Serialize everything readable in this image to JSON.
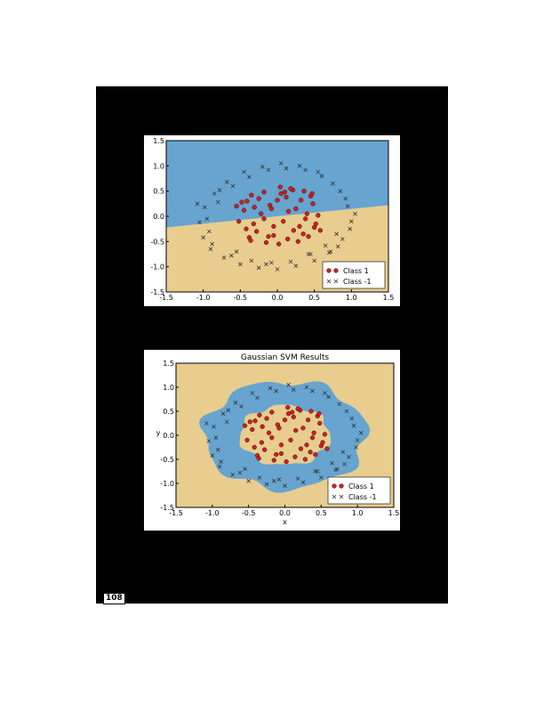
{
  "page": {
    "number": "108"
  },
  "colors": {
    "page_background": "#000000",
    "region_class1": "#e8cd8f",
    "region_class_neg1": "#67a4cf",
    "marker_class1": "#d41f1f",
    "marker_class_neg1": "#333333"
  },
  "chart_data": [
    {
      "type": "scatter",
      "title": "",
      "xlabel": "",
      "ylabel": "",
      "xlim": [
        -1.5,
        1.5
      ],
      "ylim": [
        -1.5,
        1.5
      ],
      "xticks": [
        "-1.5",
        "-1.0",
        "-0.5",
        "0.0",
        "0.5",
        "1.0",
        "1.5"
      ],
      "yticks": [
        "1.5",
        "1.0",
        "0.5",
        "0.0",
        "-0.5",
        "-1.0",
        "-1.5"
      ],
      "decision_boundary": {
        "kind": "linear",
        "points": [
          [
            -1.5,
            -0.22
          ],
          [
            1.5,
            0.22
          ]
        ],
        "above": "region_class_neg1",
        "below": "region_class1"
      },
      "series": [
        {
          "name": "Class 1",
          "marker": "o",
          "color": "#d41f1f",
          "x": [
            0.05,
            -0.41,
            0.21,
            -0.31,
            0.48,
            0.12,
            -0.05,
            0.35,
            -0.18,
            0.4,
            -0.52,
            0.28,
            -0.1,
            0.5,
            -0.38,
            0.15,
            0.02,
            -0.28,
            0.45,
            -0.45,
            0.32,
            -0.12,
            0.22,
            -0.35,
            0.55,
            0.08,
            -0.22,
            0.38,
            -0.48,
            0.18,
            0.0,
            -0.15,
            0.42,
            -0.32,
            0.25,
            -0.05,
            0.52,
            -0.42,
            0.1,
            -0.25,
            0.3,
            -0.08,
            0.47,
            -0.55,
            0.14,
            -0.36,
            0.36,
            -0.18,
            0.58,
            0.04
          ],
          "y": [
            0.45,
            0.3,
            0.52,
            0.18,
            0.25,
            0.38,
            -0.2,
            -0.35,
            0.48,
            0.05,
            -0.1,
            -0.5,
            0.22,
            -0.22,
            -0.42,
            0.1,
            -0.55,
            -0.3,
            0.4,
            0.12,
            0.32,
            -0.4,
            -0.28,
            0.42,
            0.02,
            -0.1,
            0.05,
            -0.05,
            0.28,
            0.55,
            0.32,
            -0.52,
            -0.4,
            -0.15,
            0.15,
            -0.38,
            -0.15,
            -0.25,
            0.48,
            0.35,
            -0.2,
            0.15,
            0.45,
            0.2,
            -0.45,
            -0.48,
            0.5,
            -0.05,
            -0.28,
            0.58
          ]
        },
        {
          "name": "Class -1",
          "marker": "x",
          "color": "#333333",
          "x": [
            1.0,
            0.92,
            0.75,
            0.55,
            0.3,
            0.05,
            -0.2,
            -0.45,
            -0.68,
            -0.85,
            -0.98,
            -1.05,
            -1.0,
            -0.9,
            -0.72,
            -0.5,
            -0.25,
            0.0,
            0.25,
            0.5,
            0.72,
            0.88,
            0.98,
            1.05,
            0.85,
            0.6,
            0.38,
            0.12,
            -0.12,
            -0.38,
            -0.6,
            -0.8,
            -0.95,
            -1.08,
            -0.88,
            -0.62,
            -0.35,
            -0.08,
            0.18,
            0.42,
            0.65,
            0.82,
            0.95,
            0.7,
            0.45,
            -0.55,
            -0.78,
            -0.92,
            0.8,
            -0.15
          ],
          "y": [
            -0.1,
            0.35,
            0.65,
            0.88,
            1.0,
            1.05,
            0.98,
            0.88,
            0.68,
            0.45,
            0.18,
            -0.12,
            -0.42,
            -0.65,
            -0.82,
            -0.95,
            -1.02,
            -1.05,
            -0.98,
            -0.88,
            -0.7,
            -0.45,
            -0.25,
            0.05,
            0.5,
            0.8,
            0.92,
            0.95,
            0.92,
            0.78,
            0.6,
            0.28,
            -0.05,
            0.25,
            -0.55,
            -0.78,
            -0.88,
            -0.92,
            -0.9,
            -0.75,
            -0.58,
            -0.6,
            0.2,
            -0.72,
            -0.75,
            -0.7,
            0.52,
            -0.3,
            -0.35,
            -0.95
          ]
        }
      ],
      "legend": {
        "position": "lower-right",
        "entries": [
          "Class 1",
          "Class -1"
        ]
      }
    },
    {
      "type": "scatter",
      "title": "Gaussian SVM Results",
      "xlabel": "x",
      "ylabel": "y",
      "xlim": [
        -1.5,
        1.5
      ],
      "ylim": [
        -1.5,
        1.5
      ],
      "xticks": [
        "-1.5",
        "-1.0",
        "-0.5",
        "0.0",
        "0.5",
        "1.0",
        "1.5"
      ],
      "yticks": [
        "1.5",
        "1.0",
        "0.5",
        "0.0",
        "-0.5",
        "-1.0",
        "-1.5"
      ],
      "decision_boundary": {
        "kind": "ring",
        "center": [
          0.0,
          0.0
        ],
        "inner_radius": 0.62,
        "outer_radius": 1.12,
        "ring": "region_class_neg1",
        "outside": "region_class1"
      },
      "series": [
        {
          "name": "Class 1",
          "marker": "o",
          "color": "#d41f1f",
          "x": [
            0.05,
            -0.41,
            0.21,
            -0.31,
            0.48,
            0.12,
            -0.05,
            0.35,
            -0.18,
            0.4,
            -0.52,
            0.28,
            -0.1,
            0.5,
            -0.38,
            0.15,
            0.02,
            -0.28,
            0.45,
            -0.45,
            0.32,
            -0.12,
            0.22,
            -0.35,
            0.55,
            0.08,
            -0.22,
            0.38,
            -0.48,
            0.18,
            0.0,
            -0.15,
            0.42,
            -0.32,
            0.25,
            -0.05,
            0.52,
            -0.42,
            0.1,
            -0.25,
            0.3,
            -0.08,
            0.47,
            -0.55,
            0.14,
            -0.36,
            0.36,
            -0.18,
            0.58,
            0.04
          ],
          "y": [
            0.45,
            0.3,
            0.52,
            0.18,
            0.25,
            0.38,
            -0.2,
            -0.35,
            0.48,
            0.05,
            -0.1,
            -0.5,
            0.22,
            -0.22,
            -0.42,
            0.1,
            -0.55,
            -0.3,
            0.4,
            0.12,
            0.32,
            -0.4,
            -0.28,
            0.42,
            0.02,
            -0.1,
            0.05,
            -0.05,
            0.28,
            0.55,
            0.32,
            -0.52,
            -0.4,
            -0.15,
            0.15,
            -0.38,
            -0.15,
            -0.25,
            0.48,
            0.35,
            -0.2,
            0.15,
            0.45,
            0.2,
            -0.45,
            -0.48,
            0.5,
            -0.05,
            -0.28,
            0.58
          ]
        },
        {
          "name": "Class -1",
          "marker": "x",
          "color": "#333333",
          "x": [
            1.0,
            0.92,
            0.75,
            0.55,
            0.3,
            0.05,
            -0.2,
            -0.45,
            -0.68,
            -0.85,
            -0.98,
            -1.05,
            -1.0,
            -0.9,
            -0.72,
            -0.5,
            -0.25,
            0.0,
            0.25,
            0.5,
            0.72,
            0.88,
            0.98,
            1.05,
            0.85,
            0.6,
            0.38,
            0.12,
            -0.12,
            -0.38,
            -0.6,
            -0.8,
            -0.95,
            -1.08,
            -0.88,
            -0.62,
            -0.35,
            -0.08,
            0.18,
            0.42,
            0.65,
            0.82,
            0.95,
            0.7,
            0.45,
            -0.55,
            -0.78,
            -0.92,
            0.8,
            -0.15
          ],
          "y": [
            -0.1,
            0.35,
            0.65,
            0.88,
            1.0,
            1.05,
            0.98,
            0.88,
            0.68,
            0.45,
            0.18,
            -0.12,
            -0.42,
            -0.65,
            -0.82,
            -0.95,
            -1.02,
            -1.05,
            -0.98,
            -0.88,
            -0.7,
            -0.45,
            -0.25,
            0.05,
            0.5,
            0.8,
            0.92,
            0.95,
            0.92,
            0.78,
            0.6,
            0.28,
            -0.05,
            0.25,
            -0.55,
            -0.78,
            -0.88,
            -0.92,
            -0.9,
            -0.75,
            -0.58,
            -0.6,
            0.2,
            -0.72,
            -0.75,
            -0.7,
            0.52,
            -0.3,
            -0.35,
            -0.95
          ]
        }
      ],
      "legend": {
        "position": "lower-right",
        "entries": [
          "Class 1",
          "Class -1"
        ]
      }
    }
  ]
}
